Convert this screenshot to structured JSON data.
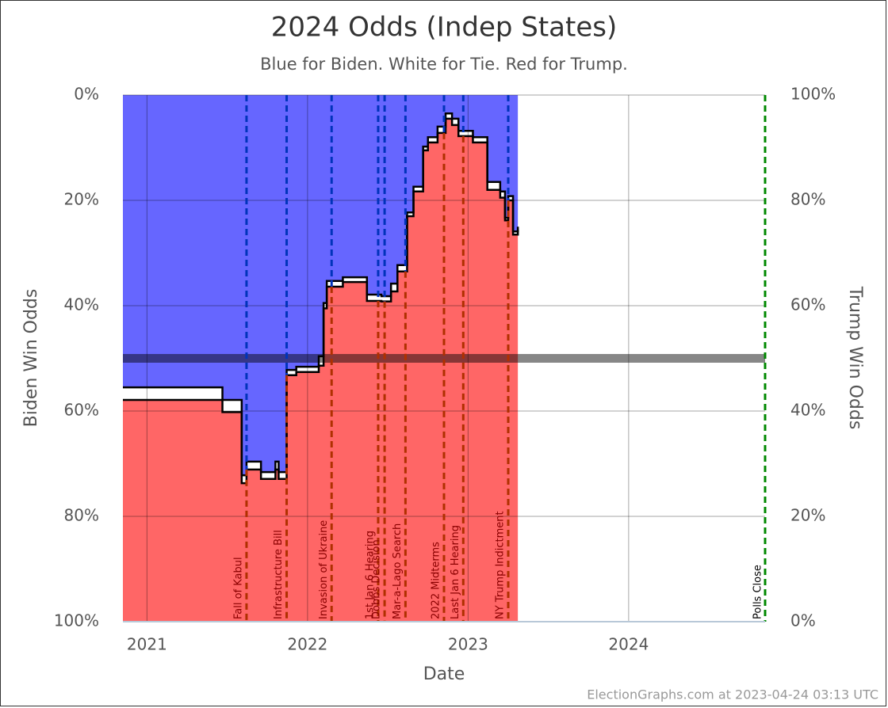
{
  "chart_data": {
    "type": "step-area",
    "title": "2024 Odds (Indep States)",
    "subtitle": "Blue for Biden. White for Tie. Red for Trump.",
    "x_label": "Date",
    "y_label": "Biden Win Odds",
    "y2_label": "Trump Win Odds",
    "footer": "ElectionGraphs.com at 2023-04-24 03:13 UTC",
    "x": [
      2020.85,
      2021.47,
      2021.59,
      2021.62,
      2021.71,
      2021.8,
      2021.82,
      2021.87,
      2021.93,
      2022.07,
      2022.1,
      2022.12,
      2022.22,
      2022.37,
      2022.46,
      2022.52,
      2022.56,
      2022.62,
      2022.66,
      2022.72,
      2022.75,
      2022.81,
      2022.86,
      2022.9,
      2022.94,
      2023.03,
      2023.12,
      2023.2,
      2023.23,
      2023.25,
      2023.28,
      2023.31
    ],
    "series": [
      {
        "color": "#6666ff",
        "values": [
          55.5,
          57.9,
          72.2,
          69.6,
          71.6,
          69.6,
          71.6,
          52.2,
          51.6,
          49.6,
          39.5,
          35.3,
          34.6,
          37.9,
          38.2,
          35.8,
          32.3,
          22.3,
          17.4,
          9.8,
          8.0,
          6.0,
          3.5,
          4.5,
          6.8,
          8.0,
          16.5,
          18.3,
          23.3,
          19.2,
          25.9,
          25.0
        ]
      },
      {
        "color": "#ff6666",
        "axis": "y2",
        "values": [
          42.1,
          39.8,
          26.3,
          28.9,
          27.1,
          28.9,
          27.1,
          46.8,
          47.4,
          48.6,
          59.5,
          63.6,
          64.5,
          60.9,
          60.8,
          62.7,
          66.5,
          77.0,
          81.7,
          89.5,
          91.0,
          92.8,
          95.5,
          94.3,
          92.2,
          91.0,
          82.0,
          80.5,
          76.2,
          80.0,
          73.5,
          74.4
        ]
      }
    ],
    "reference_line": 50,
    "events": [
      {
        "label": "Fall of Kabul",
        "x": 2021.62
      },
      {
        "label": "Infrastructure Bill",
        "x": 2021.87
      },
      {
        "label": "Invasion of Ukraine",
        "x": 2022.15
      },
      {
        "label": "1st Jan 6 Hearing",
        "x": 2022.44
      },
      {
        "label": "Dobbs Decision",
        "x": 2022.48
      },
      {
        "label": "Mar-a-Lago Search",
        "x": 2022.61
      },
      {
        "label": "2022 Midterms",
        "x": 2022.85
      },
      {
        "label": "Last Jan 6 Hearing",
        "x": 2022.97
      },
      {
        "label": "NY Trump Indictment",
        "x": 2023.25
      }
    ],
    "end_marker": {
      "label": "Polls Close",
      "x": 2024.85,
      "color": "#008800"
    },
    "xlim": [
      2020.85,
      2024.85
    ],
    "xticks": [
      2021,
      2022,
      2023,
      2024
    ],
    "ylim": [
      100,
      0
    ],
    "yticks": [
      {
        "value": 0,
        "label": "0%"
      },
      {
        "value": 20,
        "label": "20%"
      },
      {
        "value": 40,
        "label": "40%"
      },
      {
        "value": 60,
        "label": "60%"
      },
      {
        "value": 80,
        "label": "80%"
      },
      {
        "value": 100,
        "label": "100%"
      }
    ],
    "y2lim": [
      0,
      100
    ],
    "y2ticks": [
      {
        "value": 100,
        "label": "100%"
      },
      {
        "value": 80,
        "label": "80%"
      },
      {
        "value": 60,
        "label": "60%"
      },
      {
        "value": 40,
        "label": "40%"
      },
      {
        "value": 20,
        "label": "20%"
      },
      {
        "value": 0,
        "label": "0%"
      }
    ],
    "grid": true
  }
}
